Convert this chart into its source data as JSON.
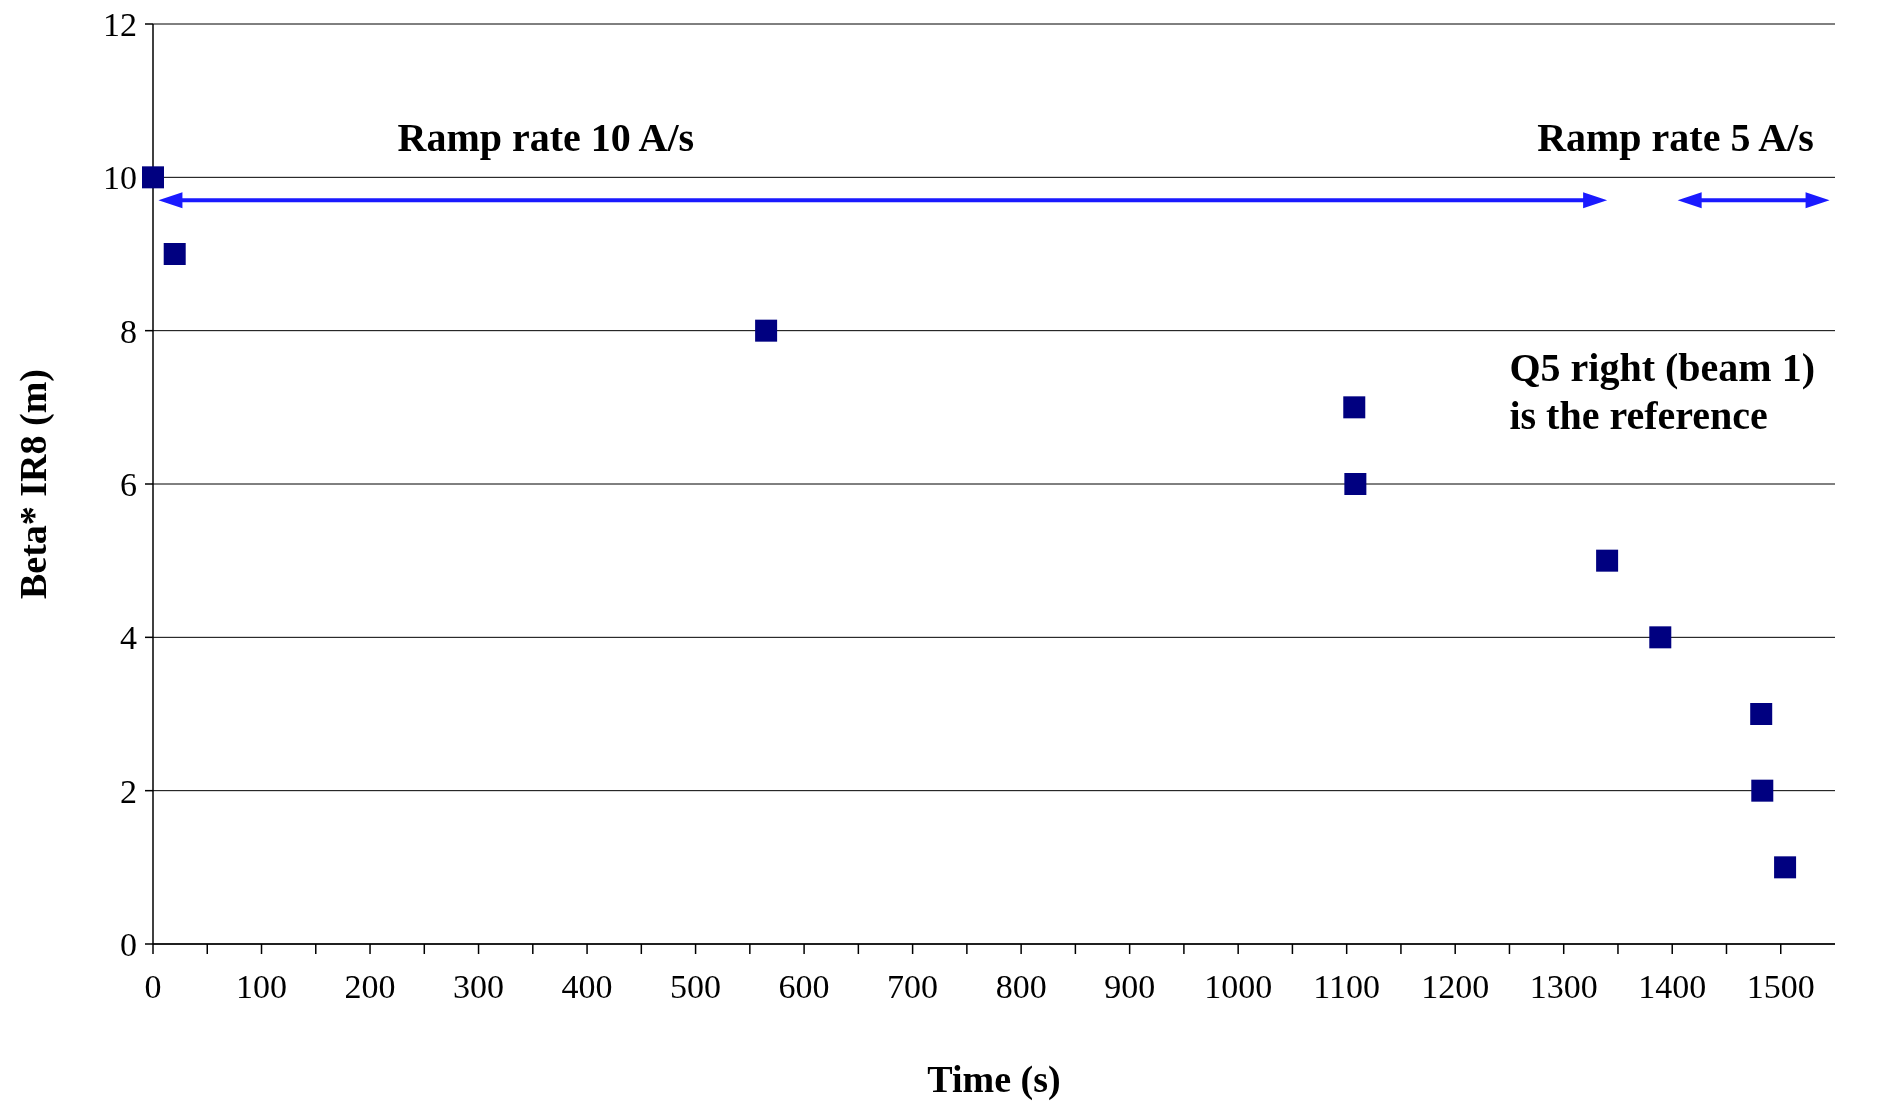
{
  "chart_data": {
    "type": "scatter",
    "xlabel": "Time (s)",
    "ylabel": "Beta* IR8 (m)",
    "x": [
      0,
      20,
      565,
      1107,
      1108,
      1340,
      1389,
      1482,
      1483,
      1504
    ],
    "series": [
      {
        "color": "#000080",
        "values": [
          10,
          9,
          8,
          7,
          6,
          5,
          4,
          3,
          2,
          1
        ]
      }
    ],
    "xlim": [
      0,
      1550
    ],
    "xticks": [
      0,
      {
        "value": 50,
        "label": null
      },
      100,
      {
        "value": 150,
        "label": null
      },
      200,
      {
        "value": 250,
        "label": null
      },
      300,
      {
        "value": 350,
        "label": null
      },
      400,
      {
        "value": 450,
        "label": null
      },
      500,
      {
        "value": 550,
        "label": null
      },
      600,
      {
        "value": 650,
        "label": null
      },
      700,
      {
        "value": 750,
        "label": null
      },
      800,
      {
        "value": 850,
        "label": null
      },
      900,
      {
        "value": 950,
        "label": null
      },
      1000,
      {
        "value": 1050,
        "label": null
      },
      1100,
      {
        "value": 1150,
        "label": null
      },
      1200,
      {
        "value": 1250,
        "label": null
      },
      1300,
      {
        "value": 1350,
        "label": null
      },
      1400,
      {
        "value": 1450,
        "label": null
      },
      1500
    ],
    "ylim": [
      0,
      12
    ],
    "yticks": [
      0,
      2,
      4,
      6,
      8,
      10,
      12
    ],
    "grid": "y",
    "marker": "square",
    "annotations": [
      "Ramp rate 10 A/s",
      "Ramp rate 5 A/s",
      "Q5 right (beam 1)\nis the reference"
    ]
  }
}
